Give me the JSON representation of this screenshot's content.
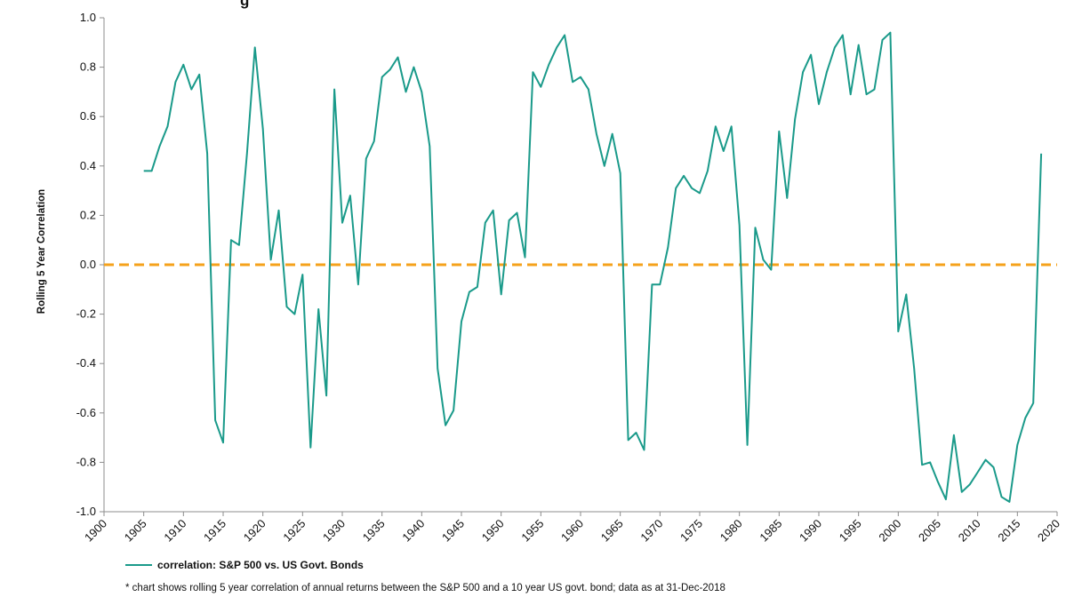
{
  "chart_data": {
    "type": "line",
    "title": "g",
    "ylabel": "Rolling 5 Year Correlation",
    "xlim": [
      1900,
      2020
    ],
    "ylim": [
      -1.0,
      1.0
    ],
    "x_ticks": [
      "1900",
      "1905",
      "1910",
      "1915",
      "1920",
      "1925",
      "1930",
      "1935",
      "1940",
      "1945",
      "1950",
      "1955",
      "1960",
      "1965",
      "1970",
      "1975",
      "1980",
      "1985",
      "1990",
      "1995",
      "2000",
      "2005",
      "2010",
      "2015",
      "2020"
    ],
    "y_ticks": [
      "1.0",
      "0.8",
      "0.6",
      "0.4",
      "0.2",
      "0.0",
      "-0.2",
      "-0.4",
      "-0.6",
      "-0.8",
      "-1.0"
    ],
    "grid": false,
    "legend": "bottom-left",
    "reference_line": {
      "y": 0.0,
      "style": "dashed",
      "color": "#f5a21b"
    },
    "series": [
      {
        "name": "correlation: S&P 500 vs. US Govt. Bonds",
        "color": "#1a9a8a",
        "x": [
          1905,
          1906,
          1907,
          1908,
          1909,
          1910,
          1911,
          1912,
          1913,
          1914,
          1915,
          1916,
          1917,
          1918,
          1919,
          1920,
          1921,
          1922,
          1923,
          1924,
          1925,
          1926,
          1927,
          1928,
          1929,
          1930,
          1931,
          1932,
          1933,
          1934,
          1935,
          1936,
          1937,
          1938,
          1939,
          1940,
          1941,
          1942,
          1943,
          1944,
          1945,
          1946,
          1947,
          1948,
          1949,
          1950,
          1951,
          1952,
          1953,
          1954,
          1955,
          1956,
          1957,
          1958,
          1959,
          1960,
          1961,
          1962,
          1963,
          1964,
          1965,
          1966,
          1967,
          1968,
          1969,
          1970,
          1971,
          1972,
          1973,
          1974,
          1975,
          1976,
          1977,
          1978,
          1979,
          1980,
          1981,
          1982,
          1983,
          1984,
          1985,
          1986,
          1987,
          1988,
          1989,
          1990,
          1991,
          1992,
          1993,
          1994,
          1995,
          1996,
          1997,
          1998,
          1999,
          2000,
          2001,
          2002,
          2003,
          2004,
          2005,
          2006,
          2007,
          2008,
          2009,
          2010,
          2011,
          2012,
          2013,
          2014,
          2015,
          2016,
          2017,
          2018
        ],
        "values": [
          0.38,
          0.38,
          0.48,
          0.56,
          0.74,
          0.81,
          0.71,
          0.77,
          0.45,
          -0.63,
          -0.72,
          0.1,
          0.08,
          0.45,
          0.88,
          0.55,
          0.02,
          0.22,
          -0.17,
          -0.2,
          -0.04,
          -0.74,
          -0.18,
          -0.53,
          0.71,
          0.17,
          0.28,
          -0.08,
          0.43,
          0.5,
          0.76,
          0.79,
          0.84,
          0.7,
          0.8,
          0.7,
          0.48,
          -0.42,
          -0.65,
          -0.59,
          -0.23,
          -0.11,
          -0.09,
          0.17,
          0.22,
          -0.12,
          0.18,
          0.21,
          0.03,
          0.78,
          0.72,
          0.81,
          0.88,
          0.93,
          0.74,
          0.76,
          0.71,
          0.53,
          0.4,
          0.53,
          0.37,
          -0.71,
          -0.68,
          -0.75,
          -0.08,
          -0.08,
          0.07,
          0.31,
          0.36,
          0.31,
          0.29,
          0.38,
          0.56,
          0.46,
          0.56,
          0.16,
          -0.73,
          0.15,
          0.02,
          -0.02,
          0.54,
          0.27,
          0.59,
          0.78,
          0.85,
          0.65,
          0.78,
          0.88,
          0.93,
          0.69,
          0.89,
          0.69,
          0.71,
          0.91,
          0.94,
          -0.27,
          -0.12,
          -0.42,
          -0.81,
          -0.8,
          -0.88,
          -0.95,
          -0.69,
          -0.92,
          -0.89,
          -0.84,
          -0.79,
          -0.82,
          -0.94,
          -0.96,
          -0.73,
          -0.62,
          -0.56,
          0.45
        ]
      }
    ]
  },
  "legend_label": "correlation: S&P 500 vs. US Govt. Bonds",
  "footnote": "* chart shows rolling 5 year correlation of annual returns between the S&P 500 and a 10 year US govt. bond; data as at 31-Dec-2018"
}
